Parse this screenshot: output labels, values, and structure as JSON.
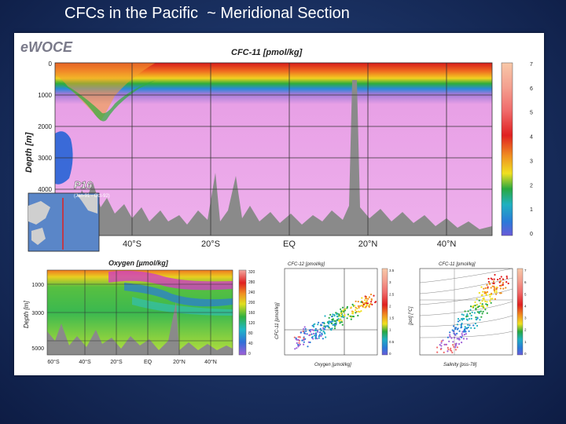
{
  "slide": {
    "title": "CFCs in the Pacific  ~ Meridional Section"
  },
  "poster": {
    "brand": "eWOCE"
  },
  "colors": {
    "background": "#1c3466",
    "ocean_pink": "#e8a0e6",
    "bathymetry": "#8a8a8a",
    "title_text": "#ffffff"
  },
  "chart_data": [
    {
      "id": "cfc11-section",
      "type": "heatmap",
      "title": "CFC-11 [pmol/kg]",
      "ylabel": "Depth [m]",
      "ylim": [
        0,
        5500
      ],
      "yticks": [
        0,
        1000,
        2000,
        3000,
        4000
      ],
      "xticks": [
        "40°S",
        "20°S",
        "EQ",
        "20°N",
        "40°N"
      ],
      "colorbar": {
        "ticks": [
          0,
          1,
          2,
          3,
          4,
          5,
          6,
          7
        ]
      },
      "inset": {
        "label": "P16",
        "sublabel": "(Jan-91 - Oct-92)"
      }
    },
    {
      "id": "oxygen-section",
      "type": "heatmap",
      "title": "Oxygen [µmol/kg]",
      "ylabel": "Depth [m]",
      "yticks": [
        1000,
        3000,
        5000
      ],
      "xticks": [
        "60°S",
        "40°S",
        "20°S",
        "EQ",
        "20°N",
        "40°N"
      ],
      "colorbar": {
        "ticks": [
          0,
          40,
          80,
          120,
          160,
          200,
          240,
          280,
          320
        ]
      }
    },
    {
      "id": "cfc12-vs-oxygen",
      "type": "scatter",
      "title": "CFC-12 [pmol/kg]",
      "xlabel": "Oxygen [µmol/kg]",
      "ylabel": "CFC-11 [pmol/kg]",
      "colorbar": {
        "ticks": [
          0,
          0.5,
          1,
          1.5,
          2,
          2.5,
          3,
          3.5
        ]
      }
    },
    {
      "id": "cfc11-ts",
      "type": "scatter",
      "title": "CFC-11 [pmol/kg]",
      "xlabel": "Salinity [pss-78]",
      "ylabel": "[pot] [°C]",
      "colorbar": {
        "ticks": [
          0,
          1,
          2,
          3,
          4,
          5,
          6,
          7
        ]
      }
    }
  ]
}
